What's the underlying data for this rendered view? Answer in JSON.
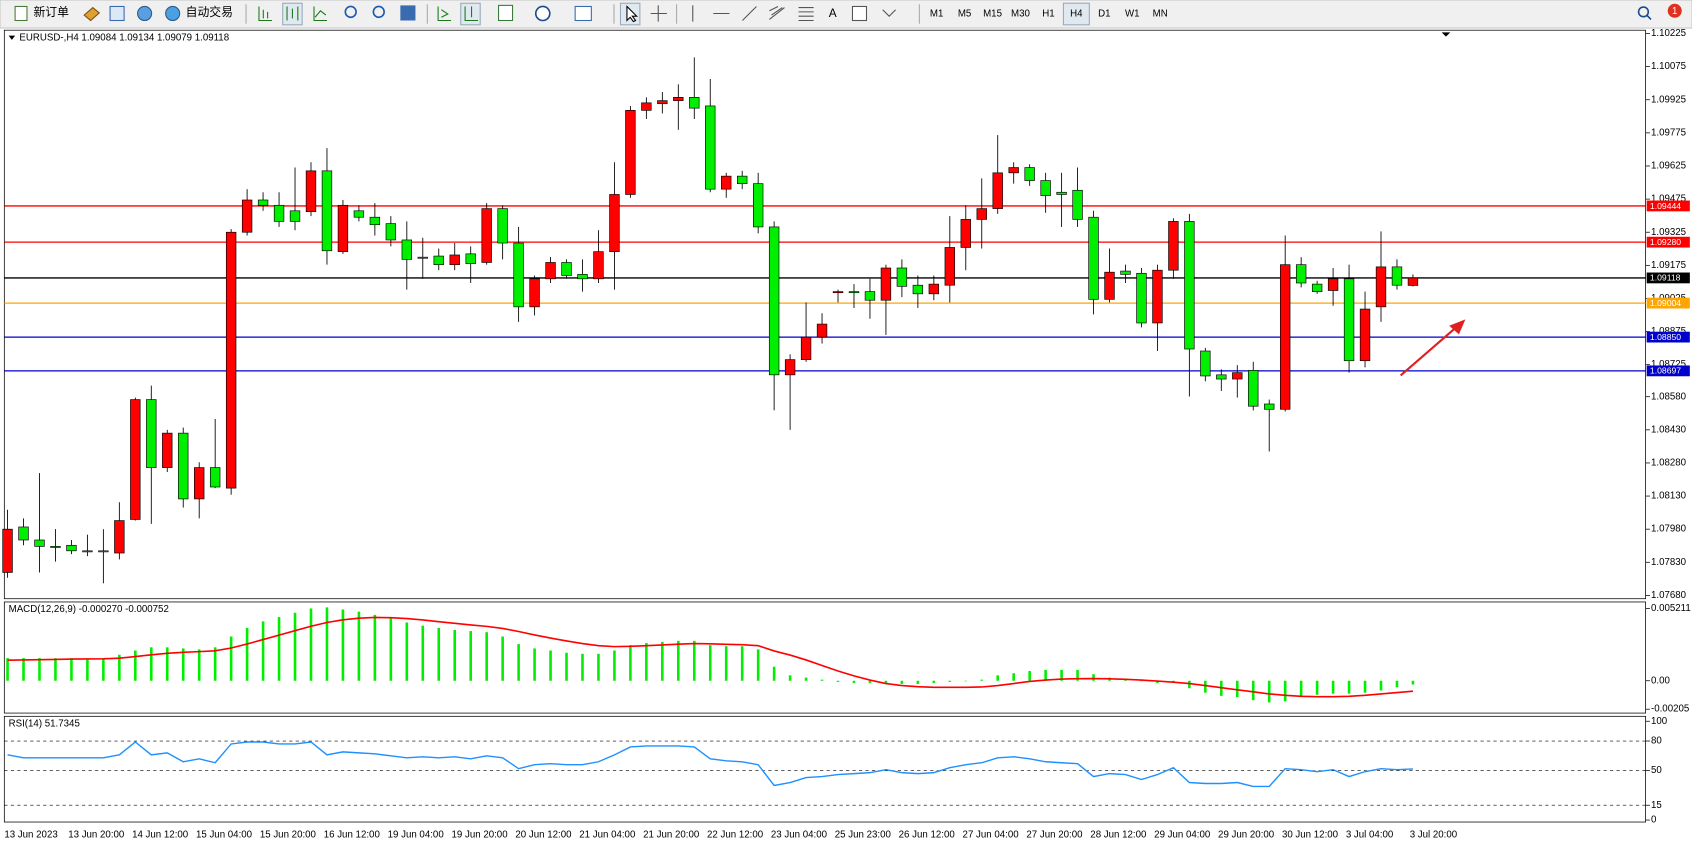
{
  "toolbar": {
    "new_order": "新订单",
    "auto_trading": "自动交易",
    "timeframes": [
      "M1",
      "M5",
      "M15",
      "M30",
      "H1",
      "H4",
      "D1",
      "W1",
      "MN"
    ],
    "active_timeframe": "H4",
    "notification_count": 1
  },
  "chart_data": [
    {
      "type": "candlestick",
      "title": "EURUSD-,H4  1.09084 1.09134 1.09079 1.09118",
      "categories": [
        "13 Jun 2023",
        null,
        null,
        null,
        "13 Jun 20:00",
        null,
        null,
        null,
        "14 Jun 12:00",
        null,
        null,
        null,
        "15 Jun 04:00",
        null,
        null,
        null,
        "15 Jun 20:00",
        null,
        null,
        null,
        "16 Jun 12:00",
        null,
        null,
        null,
        "19 Jun 04:00",
        null,
        null,
        null,
        "19 Jun 20:00",
        null,
        null,
        null,
        "20 Jun 12:00",
        null,
        null,
        null,
        "21 Jun 04:00",
        null,
        null,
        null,
        "21 Jun 20:00",
        null,
        null,
        null,
        "22 Jun 12:00",
        null,
        null,
        null,
        "23 Jun 04:00",
        null,
        null,
        null,
        "25 Jun 23:00",
        null,
        null,
        null,
        "26 Jun 12:00",
        null,
        null,
        null,
        "27 Jun 04:00",
        null,
        null,
        null,
        "27 Jun 20:00",
        null,
        null,
        null,
        "28 Jun 12:00",
        null,
        null,
        null,
        "29 Jun 04:00",
        null,
        null,
        null,
        "29 Jun 20:00",
        null,
        null,
        null,
        "30 Jun 12:00",
        null,
        null,
        null,
        "3 Jul 04:00",
        null,
        null,
        null,
        "3 Jul 20:00"
      ],
      "open": [
        1.07784,
        1.0799,
        1.07931,
        1.07902,
        1.07907,
        1.07882,
        1.07882,
        1.07872,
        1.08024,
        1.08567,
        1.08259,
        1.08415,
        1.08117,
        1.08259,
        1.08166,
        1.09325,
        1.09471,
        1.09447,
        1.09422,
        1.09418,
        1.09603,
        1.09237,
        1.09422,
        1.09393,
        1.09364,
        1.0929,
        1.09212,
        1.09217,
        1.09178,
        1.09227,
        1.09188,
        1.09432,
        1.09276,
        1.08987,
        1.09114,
        1.09188,
        1.09134,
        1.09114,
        1.09237,
        1.09496,
        1.09877,
        1.09907,
        1.09921,
        1.09936,
        1.09897,
        1.0952,
        1.09579,
        1.09545,
        1.09349,
        1.08679,
        1.08748,
        1.0885,
        1.09051,
        1.09056,
        1.09056,
        1.09017,
        1.09163,
        1.09085,
        1.09046,
        1.09085,
        1.09256,
        1.09383,
        1.09432,
        1.09594,
        1.09618,
        1.09559,
        1.09506,
        1.09515,
        1.09393,
        1.09021,
        1.09149,
        1.09139,
        1.08914,
        1.09153,
        1.09374,
        1.08787,
        1.08679,
        1.0866,
        1.08699,
        1.08547,
        1.08523,
        1.09178,
        1.0909,
        1.09061,
        1.09114,
        1.08743,
        1.08987,
        1.09168,
        1.09084
      ],
      "high": [
        1.08068,
        1.08029,
        1.08234,
        1.0798,
        1.07931,
        1.07955,
        1.0798,
        1.08102,
        1.08576,
        1.0863,
        1.0843,
        1.0844,
        1.08283,
        1.08479,
        1.09339,
        1.0952,
        1.09506,
        1.09506,
        1.09618,
        1.09642,
        1.09706,
        1.09471,
        1.09447,
        1.09457,
        1.09398,
        1.09374,
        1.093,
        1.09251,
        1.09276,
        1.09261,
        1.09457,
        1.09447,
        1.09349,
        1.09129,
        1.09212,
        1.09202,
        1.09202,
        1.09334,
        1.09642,
        1.09897,
        1.09936,
        1.0996,
        1.09995,
        1.10117,
        1.10019,
        1.09594,
        1.09603,
        1.09594,
        1.09374,
        1.08772,
        1.09007,
        1.08958,
        1.09065,
        1.0909,
        1.09114,
        1.09178,
        1.09202,
        1.09129,
        1.09129,
        1.09398,
        1.09447,
        1.09569,
        1.09765,
        1.09642,
        1.09633,
        1.09594,
        1.09594,
        1.09618,
        1.09422,
        1.09251,
        1.09178,
        1.09163,
        1.09178,
        1.09388,
        1.09408,
        1.08801,
        1.08704,
        1.08723,
        1.08738,
        1.08567,
        1.0931,
        1.09212,
        1.09105,
        1.09163,
        1.09178,
        1.09056,
        1.09329,
        1.09202,
        1.09134
      ],
      "low": [
        1.0776,
        1.07907,
        1.07784,
        1.07833,
        1.07867,
        1.07858,
        1.07735,
        1.07843,
        1.08019,
        1.08004,
        1.08239,
        1.08078,
        1.08029,
        1.08166,
        1.08136,
        1.0931,
        1.09422,
        1.09349,
        1.09334,
        1.09398,
        1.09178,
        1.09227,
        1.09374,
        1.0931,
        1.09261,
        1.09065,
        1.09114,
        1.09153,
        1.09153,
        1.09095,
        1.09178,
        1.09202,
        1.08919,
        1.08948,
        1.09095,
        1.09114,
        1.09056,
        1.09095,
        1.09065,
        1.09481,
        1.09838,
        1.09863,
        1.09789,
        1.09838,
        1.09506,
        1.09481,
        1.0952,
        1.0932,
        1.08518,
        1.0843,
        1.08738,
        1.08821,
        1.09007,
        1.08982,
        1.08933,
        1.0886,
        1.09031,
        1.08982,
        1.09017,
        1.09007,
        1.09153,
        1.09251,
        1.09408,
        1.09545,
        1.09535,
        1.09413,
        1.09349,
        1.09349,
        1.08953,
        1.09007,
        1.09095,
        1.08894,
        1.08787,
        1.09114,
        1.08581,
        1.0865,
        1.08606,
        1.08576,
        1.08518,
        1.08332,
        1.08513,
        1.09075,
        1.09046,
        1.08992,
        1.08689,
        1.08713,
        1.08919,
        1.09065,
        1.09079
      ],
      "close": [
        1.0798,
        1.07931,
        1.07902,
        1.07897,
        1.07882,
        1.0788,
        1.07878,
        1.08019,
        1.08567,
        1.08259,
        1.08415,
        1.08117,
        1.08259,
        1.08171,
        1.09325,
        1.09471,
        1.09447,
        1.09374,
        1.09374,
        1.09603,
        1.09241,
        1.09447,
        1.09393,
        1.09359,
        1.0929,
        1.09202,
        1.0921,
        1.09178,
        1.09222,
        1.09183,
        1.09432,
        1.09276,
        1.08987,
        1.09114,
        1.09188,
        1.09129,
        1.09114,
        1.09237,
        1.09496,
        1.09877,
        1.09911,
        1.09921,
        1.09936,
        1.09887,
        1.0952,
        1.09579,
        1.09545,
        1.09349,
        1.08679,
        1.08748,
        1.0885,
        1.08909,
        1.09056,
        1.09051,
        1.09017,
        1.09163,
        1.0908,
        1.09046,
        1.0909,
        1.09256,
        1.09383,
        1.09432,
        1.09594,
        1.09618,
        1.09559,
        1.09491,
        1.09496,
        1.09383,
        1.09021,
        1.09144,
        1.09134,
        1.08914,
        1.09153,
        1.09374,
        1.08796,
        1.08674,
        1.0866,
        1.08689,
        1.08537,
        1.08523,
        1.09178,
        1.09095,
        1.09056,
        1.09114,
        1.08743,
        1.08977,
        1.09168,
        1.09085,
        1.09118
      ],
      "up_color": "#ff0000",
      "down_color": "#00ee00",
      "ylim": [
        1.07665,
        1.1024
      ],
      "yticks": [
        1.10225,
        1.10075,
        1.09925,
        1.09775,
        1.09625,
        1.09475,
        1.09325,
        1.09175,
        1.09025,
        1.08875,
        1.08725,
        {
          "value": 1.0858,
          "label": "1.08580"
        },
        {
          "value": 1.0843,
          "label": "1.08430"
        },
        {
          "value": 1.0828,
          "label": "1.08280"
        },
        {
          "value": 1.0813,
          "label": "1.08130"
        },
        {
          "value": 1.0798,
          "label": "1.07980"
        },
        {
          "value": 1.0783,
          "label": "1.07830"
        },
        {
          "value": 1.0768,
          "label": "1.07680"
        }
      ],
      "hlines": [
        {
          "value": 1.09444,
          "label": "1.09444",
          "color": "#ff0000"
        },
        {
          "value": 1.0928,
          "label": "1.09280",
          "color": "#ff0000"
        },
        {
          "value": 1.09118,
          "label": "1.09118",
          "color": "#000000"
        },
        {
          "value": 1.09004,
          "label": "1.09004",
          "color": "#ffa500"
        },
        {
          "value": 1.0885,
          "label": "1.08850",
          "color": "#0000cc"
        },
        {
          "value": 1.08697,
          "label": "1.08697",
          "color": "#0000cc"
        }
      ]
    },
    {
      "type": "macd",
      "title": "MACD(12,26,9) -0.000270 -0.000752",
      "histogram": {
        "color": "#00ee00",
        "values": [
          0.00163,
          0.00163,
          0.00163,
          0.00163,
          0.00163,
          0.0016,
          0.0016,
          0.00187,
          0.00218,
          0.00241,
          0.00241,
          0.00233,
          0.00226,
          0.00241,
          0.00319,
          0.00381,
          0.00428,
          0.00459,
          0.0049,
          0.00521,
          0.00529,
          0.00514,
          0.00498,
          0.00475,
          0.00451,
          0.0042,
          0.00397,
          0.00381,
          0.00366,
          0.00358,
          0.0035,
          0.00319,
          0.00264,
          0.00233,
          0.00218,
          0.00202,
          0.00194,
          0.00194,
          0.00218,
          0.00257,
          0.00272,
          0.0028,
          0.00288,
          0.00288,
          0.00257,
          0.00249,
          0.00249,
          0.00226,
          0.00101,
          0.00039,
          0.00023,
          8e-05,
          -8e-05,
          -0.00016,
          -0.00016,
          -0.00023,
          -0.00023,
          -0.00023,
          -0.00016,
          -8e-05,
          0,
          8e-05,
          0.00039,
          0.00054,
          0.0007,
          0.00078,
          0.00078,
          0.00078,
          0.00047,
          0.00023,
          0.00016,
          0,
          -0.00016,
          -0.00016,
          -0.00054,
          -0.00086,
          -0.00109,
          -0.00117,
          -0.0014,
          -0.00156,
          -0.00148,
          -0.00117,
          -0.00101,
          -0.00093,
          -0.00093,
          -0.00086,
          -0.0007,
          -0.00047,
          -0.00027
        ]
      },
      "signal": {
        "color": "#ff0000",
        "values": [
          0.00148,
          0.0015,
          0.00152,
          0.00154,
          0.00156,
          0.00157,
          0.00158,
          0.00163,
          0.00174,
          0.00187,
          0.00198,
          0.00205,
          0.0021,
          0.00216,
          0.00236,
          0.00265,
          0.00297,
          0.00329,
          0.00361,
          0.00393,
          0.0042,
          0.00439,
          0.00451,
          0.00456,
          0.00455,
          0.00448,
          0.00438,
          0.00426,
          0.00414,
          0.00402,
          0.00392,
          0.00377,
          0.00355,
          0.0033,
          0.00308,
          0.00287,
          0.00268,
          0.00253,
          0.00246,
          0.00248,
          0.00253,
          0.00258,
          0.00264,
          0.00268,
          0.00266,
          0.00263,
          0.0026,
          0.00253,
          0.00215,
          0.00185,
          0.0015,
          0.0011,
          0.0007,
          0.00035,
          5e-05,
          -0.0002,
          -0.00035,
          -0.00043,
          -0.00047,
          -0.00047,
          -0.00047,
          -0.00045,
          -0.00035,
          -0.0002,
          -5e-05,
          5e-05,
          0.00012,
          0.00015,
          0.00016,
          0.00014,
          0.0001,
          5e-05,
          -2e-05,
          -0.0001,
          -0.0002,
          -0.00035,
          -0.0005,
          -0.00065,
          -0.0008,
          -0.00095,
          -0.00105,
          -0.00112,
          -0.00115,
          -0.00115,
          -0.00112,
          -0.00105,
          -0.00095,
          -0.00085,
          -0.000752
        ]
      },
      "ylim": [
        -0.00233,
        0.00568
      ],
      "yticks": [
        0.005211,
        {
          "value": 0,
          "label": "0.00"
        },
        -0.00205
      ]
    },
    {
      "type": "line",
      "title": "RSI(14) 51.7345",
      "color": "#1e90ff",
      "values": [
        66,
        63,
        63,
        63,
        63,
        63,
        63,
        66,
        79,
        66,
        68,
        59,
        62,
        58,
        77,
        79,
        79,
        77,
        77,
        79,
        66,
        69,
        68,
        67,
        65,
        63,
        64,
        63,
        64,
        62,
        65,
        63,
        52,
        56,
        57,
        56,
        56,
        59,
        66,
        74,
        75,
        75,
        75,
        74,
        62,
        60,
        59,
        56,
        35,
        38,
        43,
        44,
        46,
        47,
        48,
        51,
        48,
        47,
        48,
        53,
        56,
        58,
        63,
        64,
        62,
        59,
        58,
        57,
        44,
        47,
        46,
        41,
        46,
        53,
        38,
        37,
        37,
        38,
        34,
        34,
        52,
        51,
        49,
        51,
        44,
        49,
        52,
        51,
        51.7345
      ],
      "ylim": [
        -2,
        105
      ],
      "yticks": [
        100,
        80,
        50,
        15,
        0
      ],
      "levels": [
        80,
        50,
        15
      ]
    }
  ]
}
